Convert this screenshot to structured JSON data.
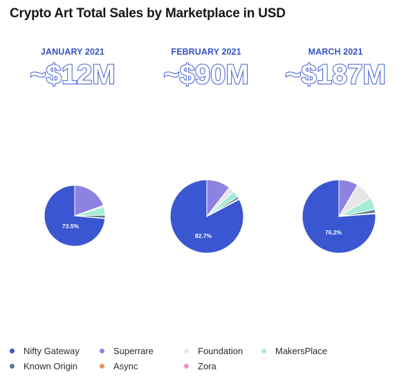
{
  "title": "Crypto Art Total Sales by Marketplace in USD",
  "chart_data": [
    {
      "type": "pie",
      "month": "JANUARY 2021",
      "total": "~$12M",
      "slice_label": "73.5%",
      "slices": [
        {
          "name": "Nifty Gateway",
          "value": 73.5
        },
        {
          "name": "Superrare",
          "value": 19.5
        },
        {
          "name": "Foundation",
          "value": 0.8
        },
        {
          "name": "MakersPlace",
          "value": 4.4
        },
        {
          "name": "Known Origin",
          "value": 1.6
        },
        {
          "name": "Async",
          "value": 0.1
        },
        {
          "name": "Zora",
          "value": 0.1
        }
      ]
    },
    {
      "type": "pie",
      "month": "FEBRUARY 2021",
      "total": "~$90M",
      "slice_label": "82.7%",
      "slices": [
        {
          "name": "Nifty Gateway",
          "value": 82.7
        },
        {
          "name": "Superrare",
          "value": 10.5
        },
        {
          "name": "Foundation",
          "value": 2.5
        },
        {
          "name": "MakersPlace",
          "value": 3.0
        },
        {
          "name": "Known Origin",
          "value": 1.0
        },
        {
          "name": "Async",
          "value": 0.2
        },
        {
          "name": "Zora",
          "value": 0.1
        }
      ]
    },
    {
      "type": "pie",
      "month": "MARCH 2021",
      "total": "~$187M",
      "slice_label": "76.2%",
      "slices": [
        {
          "name": "Nifty Gateway",
          "value": 76.2
        },
        {
          "name": "Superrare",
          "value": 8.5
        },
        {
          "name": "Foundation",
          "value": 8.0
        },
        {
          "name": "MakersPlace",
          "value": 5.5
        },
        {
          "name": "Known Origin",
          "value": 1.5
        },
        {
          "name": "Async",
          "value": 0.2
        },
        {
          "name": "Zora",
          "value": 0.1
        }
      ]
    }
  ],
  "legend": [
    [
      {
        "name": "Nifty Gateway",
        "color": "#3a57d1"
      },
      {
        "name": "Superrare",
        "color": "#8e82e0"
      },
      {
        "name": "Foundation",
        "color": "#e6e6e6"
      },
      {
        "name": "MakersPlace",
        "color": "#a6ecd6"
      }
    ],
    [
      {
        "name": "Known Origin",
        "color": "#5f7a8a"
      },
      {
        "name": "Async",
        "color": "#e2975a"
      },
      {
        "name": "Zora",
        "color": "#e594c8"
      }
    ]
  ],
  "colors": {
    "Nifty Gateway": "#3a57d1",
    "Superrare": "#8e82e0",
    "Foundation": "#e6e6e6",
    "MakersPlace": "#a6ecd6",
    "Known Origin": "#5f7a8a",
    "Async": "#e2975a",
    "Zora": "#e594c8"
  }
}
